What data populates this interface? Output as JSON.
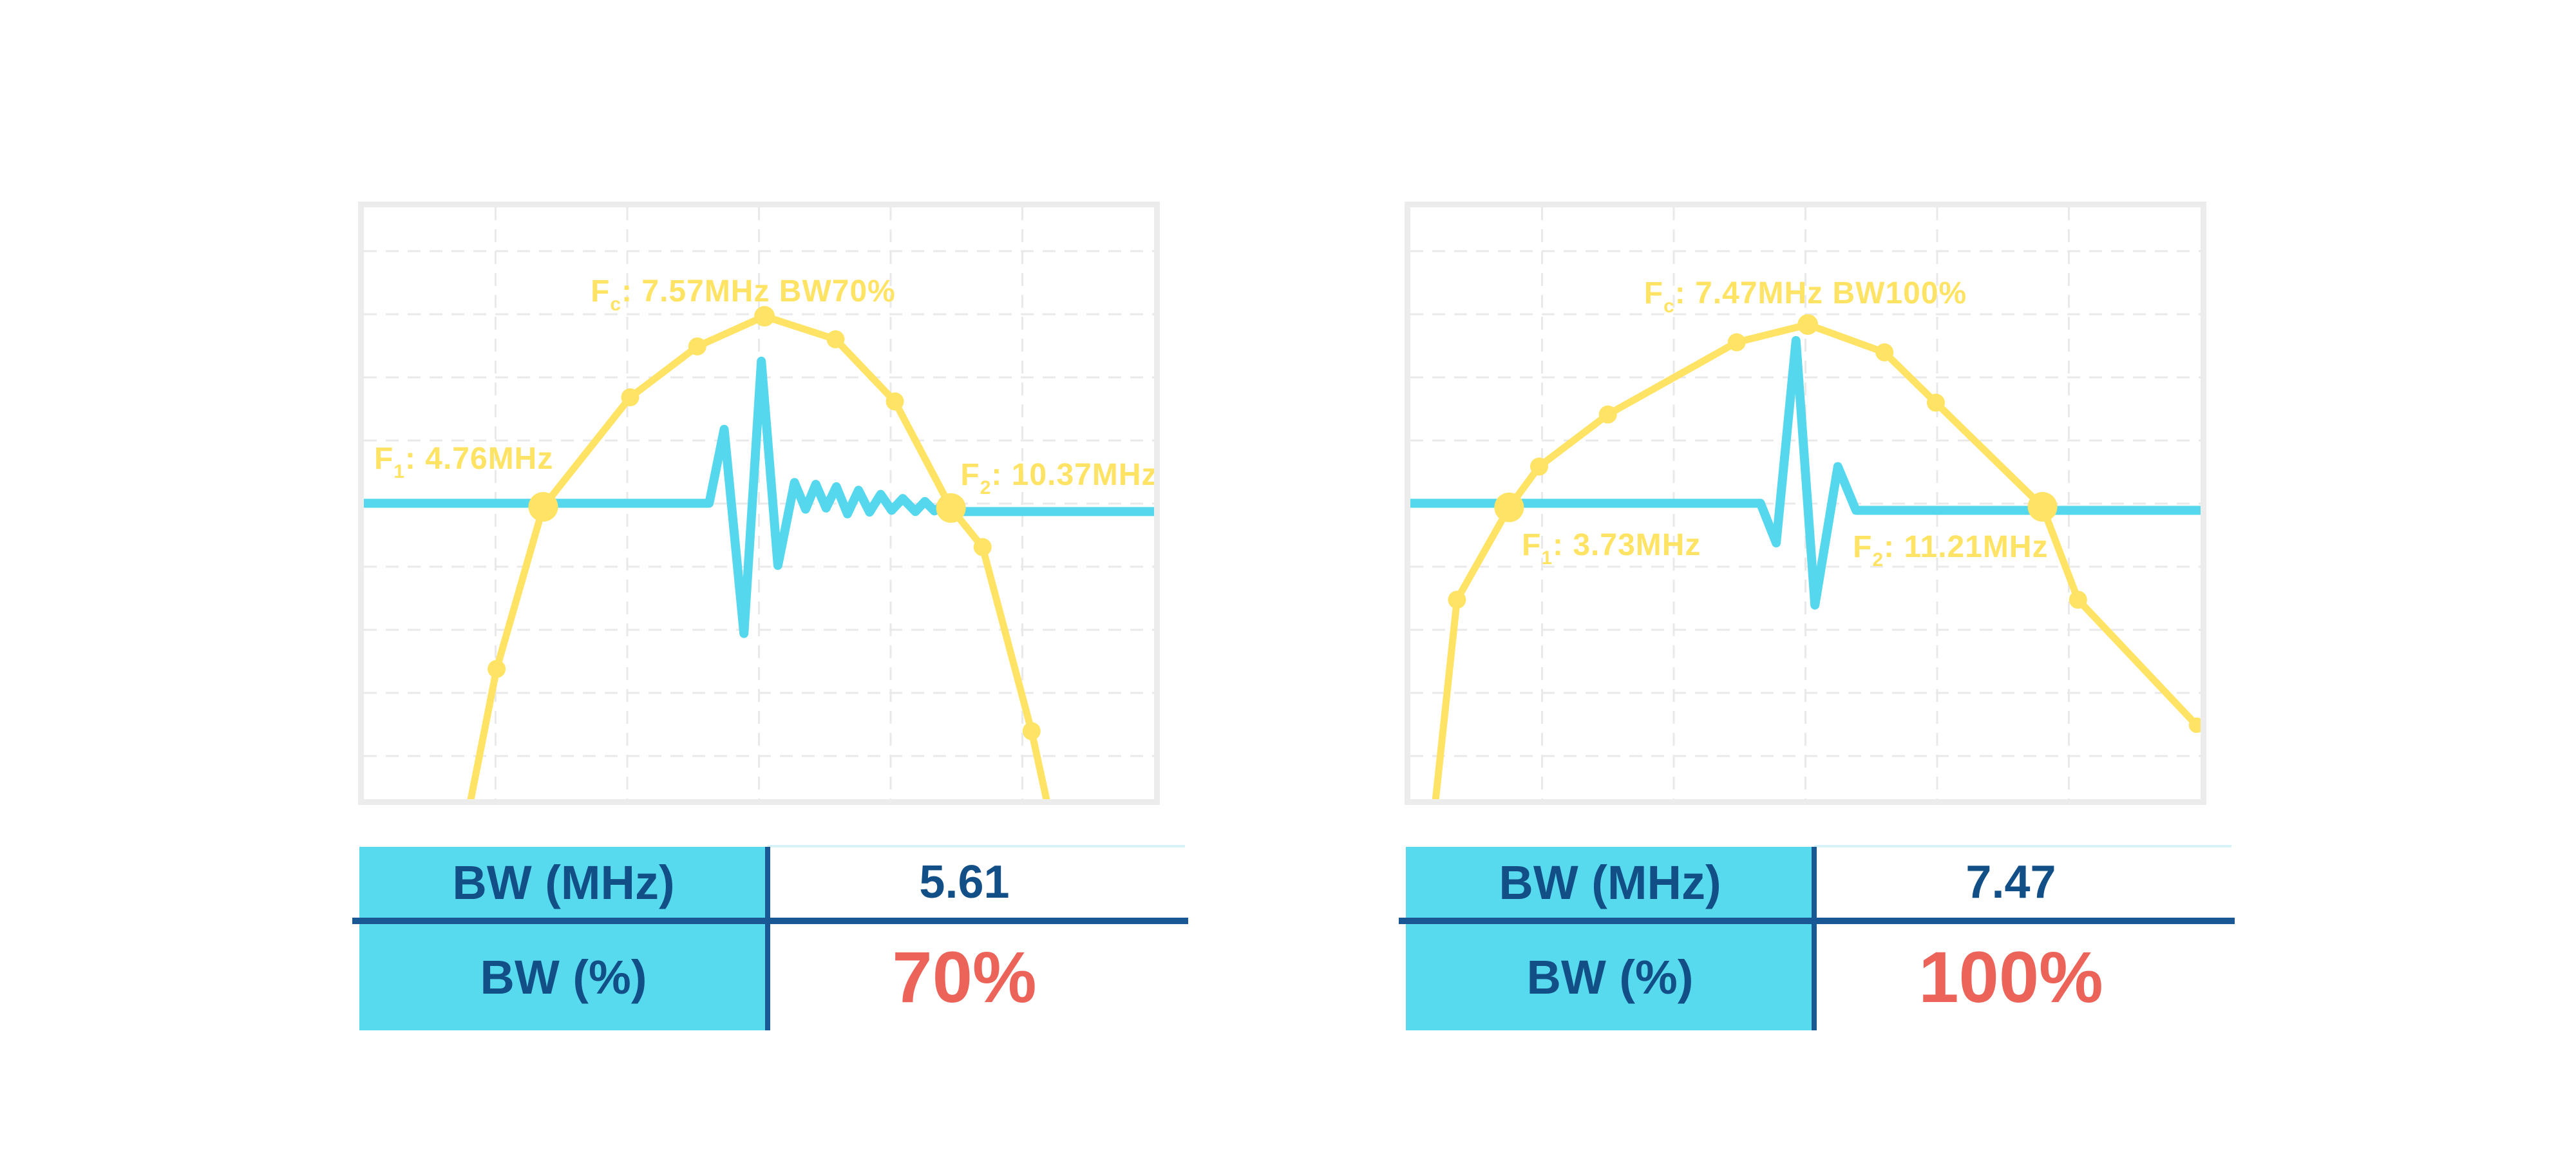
{
  "colors": {
    "spectrum_yellow": "#ffe364",
    "waveform_cyan": "#55d8ed",
    "table_header_cyan": "#58daee",
    "navy_text": "#134f87",
    "navy_line": "#1a5795",
    "percent_red": "#ec6459",
    "grid_gray": "#e9e9e9",
    "frame_gray": "#ececec"
  },
  "chart_data": [
    {
      "type": "line",
      "title": "",
      "xlabel": "",
      "ylabel": "",
      "axes_visible": false,
      "grid": "dashed",
      "legend_position": "none",
      "values_mhz": {
        "fc": 7.57,
        "f1": 4.76,
        "f2": 10.37,
        "bw_mhz": 5.61,
        "bw_percent": 70
      },
      "annotations": {
        "fc": {
          "f": "F",
          "sub": "c",
          "rest": ": 7.57MHz BW70%",
          "x": 0.48,
          "y": 0.143,
          "anchor": "center"
        },
        "f1": {
          "f": "F",
          "sub": "1",
          "rest": ": 4.76MHz",
          "x": 0.013,
          "y": 0.425,
          "anchor": "left"
        },
        "f2": {
          "f": "F",
          "sub": "2",
          "rest": ": 10.37MHz",
          "x": 0.755,
          "y": 0.453,
          "anchor": "left"
        }
      },
      "spectrum": {
        "name": "frequency-spectrum",
        "points": [
          [
            0.128,
            1.05
          ],
          [
            0.168,
            0.78
          ],
          [
            0.227,
            0.506
          ],
          [
            0.337,
            0.321
          ],
          [
            0.422,
            0.235
          ],
          [
            0.507,
            0.184
          ],
          [
            0.597,
            0.223
          ],
          [
            0.672,
            0.328
          ],
          [
            0.743,
            0.508
          ],
          [
            0.783,
            0.574
          ],
          [
            0.845,
            0.885
          ],
          [
            0.872,
            1.05
          ]
        ],
        "markers": [
          {
            "x": 0.168,
            "y": 0.78,
            "r": 14
          },
          {
            "x": 0.227,
            "y": 0.506,
            "r": 23
          },
          {
            "x": 0.337,
            "y": 0.321,
            "r": 14
          },
          {
            "x": 0.422,
            "y": 0.235,
            "r": 14
          },
          {
            "x": 0.507,
            "y": 0.184,
            "r": 16
          },
          {
            "x": 0.597,
            "y": 0.223,
            "r": 14
          },
          {
            "x": 0.672,
            "y": 0.328,
            "r": 14
          },
          {
            "x": 0.743,
            "y": 0.508,
            "r": 23
          },
          {
            "x": 0.783,
            "y": 0.574,
            "r": 14
          },
          {
            "x": 0.845,
            "y": 0.885,
            "r": 14
          }
        ]
      },
      "waveform": {
        "name": "pulse-echo-waveform",
        "points": [
          [
            0,
            0.5
          ],
          [
            0.437,
            0.5
          ],
          [
            0.456,
            0.375
          ],
          [
            0.481,
            0.72
          ],
          [
            0.503,
            0.26
          ],
          [
            0.524,
            0.605
          ],
          [
            0.545,
            0.465
          ],
          [
            0.559,
            0.51
          ],
          [
            0.572,
            0.468
          ],
          [
            0.585,
            0.508
          ],
          [
            0.598,
            0.472
          ],
          [
            0.612,
            0.518
          ],
          [
            0.626,
            0.478
          ],
          [
            0.64,
            0.515
          ],
          [
            0.654,
            0.485
          ],
          [
            0.668,
            0.512
          ],
          [
            0.682,
            0.492
          ],
          [
            0.698,
            0.514
          ],
          [
            0.71,
            0.497
          ],
          [
            0.722,
            0.513
          ],
          [
            0.734,
            0.503
          ],
          [
            0.743,
            0.514
          ],
          [
            1,
            0.514
          ]
        ]
      }
    },
    {
      "type": "line",
      "title": "",
      "xlabel": "",
      "ylabel": "",
      "axes_visible": false,
      "grid": "dashed",
      "legend_position": "none",
      "values_mhz": {
        "fc": 7.47,
        "f1": 3.73,
        "f2": 11.21,
        "bw_mhz": 7.47,
        "bw_percent": 100
      },
      "annotations": {
        "fc": {
          "f": "F",
          "sub": "c",
          "rest": ": 7.47MHz BW100%",
          "x": 0.5,
          "y": 0.146,
          "anchor": "center"
        },
        "f1": {
          "f": "F",
          "sub": "1",
          "rest": ": 3.73MHz",
          "x": 0.141,
          "y": 0.571,
          "anchor": "left"
        },
        "f2": {
          "f": "F",
          "sub": "2",
          "rest": ": 11.21MHz",
          "x": 0.56,
          "y": 0.574,
          "anchor": "left"
        }
      },
      "spectrum": {
        "name": "frequency-spectrum",
        "points": [
          [
            0.028,
            1.05
          ],
          [
            0.059,
            0.663
          ],
          [
            0.125,
            0.507
          ],
          [
            0.163,
            0.438
          ],
          [
            0.25,
            0.35
          ],
          [
            0.413,
            0.228
          ],
          [
            0.503,
            0.198
          ],
          [
            0.6,
            0.245
          ],
          [
            0.665,
            0.33
          ],
          [
            0.8,
            0.506
          ],
          [
            0.845,
            0.663
          ],
          [
            0.995,
            0.875
          ]
        ],
        "markers": [
          {
            "x": 0.059,
            "y": 0.663,
            "r": 14
          },
          {
            "x": 0.125,
            "y": 0.507,
            "r": 23
          },
          {
            "x": 0.163,
            "y": 0.438,
            "r": 14
          },
          {
            "x": 0.25,
            "y": 0.35,
            "r": 14
          },
          {
            "x": 0.413,
            "y": 0.228,
            "r": 14
          },
          {
            "x": 0.503,
            "y": 0.198,
            "r": 16
          },
          {
            "x": 0.6,
            "y": 0.245,
            "r": 14
          },
          {
            "x": 0.665,
            "y": 0.33,
            "r": 14
          },
          {
            "x": 0.8,
            "y": 0.506,
            "r": 23
          },
          {
            "x": 0.845,
            "y": 0.663,
            "r": 14
          },
          {
            "x": 0.995,
            "y": 0.875,
            "r": 12
          }
        ]
      },
      "waveform": {
        "name": "pulse-echo-waveform",
        "points": [
          [
            0,
            0.5
          ],
          [
            0.443,
            0.5
          ],
          [
            0.463,
            0.567
          ],
          [
            0.488,
            0.225
          ],
          [
            0.512,
            0.672
          ],
          [
            0.541,
            0.438
          ],
          [
            0.564,
            0.512
          ],
          [
            0.8,
            0.512
          ],
          [
            1,
            0.512
          ]
        ]
      }
    }
  ],
  "tables": [
    {
      "row1_label": "BW (MHz)",
      "row1_value": "5.61",
      "row2_label": "BW (%)",
      "row2_value": "70%"
    },
    {
      "row1_label": "BW (MHz)",
      "row1_value": "7.47",
      "row2_label": "BW (%)",
      "row2_value": "100%"
    }
  ]
}
